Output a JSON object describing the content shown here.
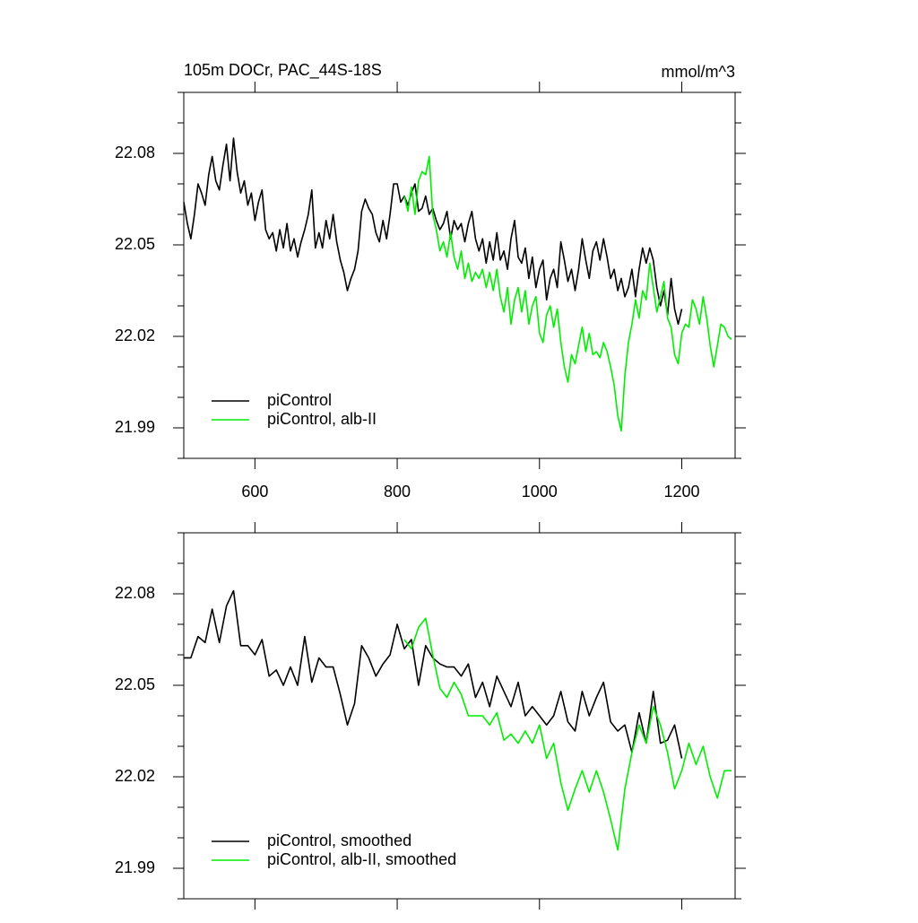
{
  "chart_data": [
    {
      "type": "line",
      "title": "105m DOCr, PAC_44S-18S",
      "units": "mmol/m^3",
      "xlim": [
        500,
        1275
      ],
      "ylim": [
        21.98,
        22.1
      ],
      "xticks": [
        600,
        800,
        1000,
        1200
      ],
      "xticklabels": true,
      "yticks": [
        22.08,
        22.05,
        22.02,
        21.99
      ],
      "yminorticks": [
        21.98,
        21.99,
        22.0,
        22.01,
        22.02,
        22.03,
        22.04,
        22.05,
        22.06,
        22.07,
        22.08,
        22.09,
        22.1
      ],
      "legend": "lower left",
      "series": [
        {
          "name": "piControl",
          "color": "#000000",
          "x": [
            500,
            505,
            510,
            515,
            520,
            525,
            530,
            535,
            540,
            545,
            550,
            555,
            560,
            565,
            570,
            575,
            580,
            585,
            590,
            595,
            600,
            605,
            610,
            615,
            620,
            625,
            630,
            635,
            640,
            645,
            650,
            655,
            660,
            665,
            670,
            675,
            680,
            685,
            690,
            695,
            700,
            705,
            710,
            715,
            720,
            725,
            730,
            735,
            740,
            745,
            750,
            755,
            760,
            765,
            770,
            775,
            780,
            785,
            790,
            795,
            800,
            805,
            810,
            815,
            820,
            825,
            830,
            835,
            840,
            845,
            850,
            855,
            860,
            865,
            870,
            875,
            880,
            885,
            890,
            895,
            900,
            905,
            910,
            915,
            920,
            925,
            930,
            935,
            940,
            945,
            950,
            955,
            960,
            965,
            970,
            975,
            980,
            985,
            990,
            995,
            1000,
            1005,
            1010,
            1015,
            1020,
            1025,
            1030,
            1035,
            1040,
            1045,
            1050,
            1055,
            1060,
            1065,
            1070,
            1075,
            1080,
            1085,
            1090,
            1095,
            1100,
            1105,
            1110,
            1115,
            1120,
            1125,
            1130,
            1135,
            1140,
            1145,
            1150,
            1155,
            1160,
            1165,
            1170,
            1175,
            1180,
            1185,
            1190,
            1195,
            1200
          ],
          "values": [
            22.064,
            22.057,
            22.052,
            22.06,
            22.07,
            22.067,
            22.063,
            22.073,
            22.079,
            22.071,
            22.068,
            22.076,
            22.083,
            22.071,
            22.085,
            22.074,
            22.067,
            22.071,
            22.063,
            22.067,
            22.058,
            22.064,
            22.068,
            22.055,
            22.052,
            22.054,
            22.048,
            22.055,
            22.049,
            22.057,
            22.048,
            22.052,
            22.046,
            22.051,
            22.055,
            22.06,
            22.068,
            22.049,
            22.054,
            22.049,
            22.058,
            22.052,
            22.06,
            22.051,
            22.045,
            22.041,
            22.035,
            22.039,
            22.042,
            22.048,
            22.061,
            22.065,
            22.062,
            22.06,
            22.054,
            22.051,
            22.058,
            22.052,
            22.06,
            22.07,
            22.07,
            22.064,
            22.066,
            22.063,
            22.067,
            22.07,
            22.061,
            22.062,
            22.066,
            22.06,
            22.062,
            22.058,
            22.055,
            22.057,
            22.061,
            22.052,
            22.058,
            22.055,
            22.057,
            22.051,
            22.057,
            22.061,
            22.052,
            22.048,
            22.052,
            22.044,
            22.051,
            22.045,
            22.054,
            22.045,
            22.048,
            22.042,
            22.052,
            22.058,
            22.046,
            22.044,
            22.049,
            22.039,
            22.046,
            22.036,
            22.042,
            22.045,
            22.032,
            22.039,
            22.042,
            22.036,
            22.051,
            22.045,
            22.038,
            22.042,
            22.035,
            22.042,
            22.052,
            22.045,
            22.039,
            22.048,
            22.051,
            22.045,
            22.052,
            22.046,
            22.039,
            22.042,
            22.035,
            22.039,
            22.033,
            22.036,
            22.042,
            22.033,
            22.042,
            22.049,
            22.044,
            22.049,
            22.045,
            22.036,
            22.03,
            22.035,
            22.027,
            22.039,
            22.029,
            22.024,
            22.029
          ]
        },
        {
          "name": "piControl, alb-II",
          "color": "#00ee00",
          "x": [
            810,
            815,
            820,
            825,
            830,
            835,
            840,
            845,
            850,
            855,
            860,
            865,
            870,
            875,
            880,
            885,
            890,
            895,
            900,
            905,
            910,
            915,
            920,
            925,
            930,
            935,
            940,
            945,
            950,
            955,
            960,
            965,
            970,
            975,
            980,
            985,
            990,
            995,
            1000,
            1005,
            1010,
            1015,
            1020,
            1025,
            1030,
            1035,
            1040,
            1045,
            1050,
            1055,
            1060,
            1065,
            1070,
            1075,
            1080,
            1085,
            1090,
            1095,
            1100,
            1105,
            1110,
            1115,
            1120,
            1125,
            1130,
            1135,
            1140,
            1145,
            1150,
            1155,
            1160,
            1165,
            1170,
            1175,
            1180,
            1185,
            1190,
            1195,
            1200,
            1205,
            1210,
            1215,
            1220,
            1225,
            1230,
            1235,
            1240,
            1245,
            1250,
            1255,
            1260,
            1265,
            1270
          ],
          "values": [
            22.066,
            22.061,
            22.069,
            22.06,
            22.071,
            22.074,
            22.073,
            22.079,
            22.06,
            22.055,
            22.048,
            22.051,
            22.046,
            22.054,
            22.046,
            22.042,
            22.048,
            22.039,
            22.044,
            22.038,
            22.041,
            22.039,
            22.042,
            22.036,
            22.041,
            22.035,
            22.042,
            22.033,
            22.028,
            22.036,
            22.024,
            22.032,
            22.036,
            22.028,
            22.035,
            22.024,
            22.03,
            22.033,
            22.021,
            22.018,
            22.027,
            22.03,
            22.023,
            22.029,
            22.018,
            22.01,
            22.005,
            22.014,
            22.011,
            22.017,
            22.023,
            22.015,
            22.021,
            22.014,
            22.015,
            22.013,
            22.018,
            22.015,
            22.01,
            22.004,
            21.994,
            21.989,
            22.007,
            22.018,
            22.024,
            22.032,
            22.026,
            22.035,
            22.032,
            22.044,
            22.036,
            22.028,
            22.033,
            22.038,
            22.026,
            22.023,
            22.014,
            22.011,
            22.021,
            22.024,
            22.023,
            22.032,
            22.029,
            22.024,
            22.033,
            22.026,
            22.017,
            22.01,
            22.017,
            22.024,
            22.023,
            22.02,
            22.019
          ]
        }
      ]
    },
    {
      "type": "line",
      "xlim": [
        500,
        1275
      ],
      "ylim": [
        21.98,
        22.1
      ],
      "xticks": [
        600,
        800,
        1000,
        1200
      ],
      "xticklabels": false,
      "yticks": [
        22.08,
        22.05,
        22.02,
        21.99
      ],
      "yminorticks": [
        21.98,
        21.99,
        22.0,
        22.01,
        22.02,
        22.03,
        22.04,
        22.05,
        22.06,
        22.07,
        22.08,
        22.09,
        22.1
      ],
      "legend": "lower left",
      "series": [
        {
          "name": "piControl, smoothed",
          "color": "#000000",
          "x": [
            500,
            510,
            520,
            530,
            540,
            550,
            560,
            570,
            580,
            590,
            600,
            610,
            620,
            630,
            640,
            650,
            660,
            670,
            680,
            690,
            700,
            710,
            720,
            730,
            740,
            750,
            760,
            770,
            780,
            790,
            800,
            810,
            820,
            830,
            840,
            850,
            860,
            870,
            880,
            890,
            900,
            910,
            920,
            930,
            940,
            950,
            960,
            970,
            980,
            990,
            1000,
            1010,
            1020,
            1030,
            1040,
            1050,
            1060,
            1070,
            1080,
            1090,
            1100,
            1110,
            1120,
            1130,
            1140,
            1150,
            1160,
            1170,
            1180,
            1190,
            1200
          ],
          "values": [
            22.059,
            22.059,
            22.066,
            22.064,
            22.075,
            22.064,
            22.076,
            22.081,
            22.063,
            22.063,
            22.06,
            22.065,
            22.053,
            22.055,
            22.05,
            22.056,
            22.05,
            22.066,
            22.051,
            22.059,
            22.056,
            22.056,
            22.047,
            22.037,
            22.044,
            22.063,
            22.059,
            22.053,
            22.057,
            22.06,
            22.07,
            22.062,
            22.065,
            22.05,
            22.063,
            22.059,
            22.057,
            22.056,
            22.056,
            22.053,
            22.057,
            22.046,
            22.051,
            22.043,
            22.053,
            22.048,
            22.043,
            22.051,
            22.04,
            22.043,
            22.04,
            22.037,
            22.04,
            22.048,
            22.038,
            22.035,
            22.048,
            22.04,
            22.046,
            22.051,
            22.038,
            22.035,
            22.037,
            22.028,
            22.041,
            22.031,
            22.048,
            22.031,
            22.032,
            22.037,
            22.026
          ]
        },
        {
          "name": "piControl, alb-II, smoothed",
          "color": "#00ee00",
          "x": [
            810,
            820,
            830,
            840,
            850,
            860,
            870,
            880,
            890,
            900,
            910,
            920,
            930,
            940,
            950,
            960,
            970,
            980,
            990,
            1000,
            1010,
            1020,
            1030,
            1040,
            1050,
            1060,
            1070,
            1080,
            1090,
            1100,
            1110,
            1120,
            1130,
            1140,
            1150,
            1160,
            1170,
            1180,
            1190,
            1200,
            1210,
            1220,
            1230,
            1240,
            1250,
            1260,
            1270
          ],
          "values": [
            22.065,
            22.062,
            22.069,
            22.072,
            22.06,
            22.049,
            22.046,
            22.051,
            22.047,
            22.04,
            22.04,
            22.04,
            22.037,
            22.041,
            22.032,
            22.034,
            22.031,
            22.035,
            22.031,
            22.037,
            22.026,
            22.031,
            22.018,
            22.009,
            22.016,
            22.022,
            22.015,
            22.022,
            22.015,
            22.006,
            21.996,
            22.016,
            22.028,
            22.037,
            22.031,
            22.043,
            22.037,
            22.028,
            22.016,
            22.022,
            22.031,
            22.024,
            22.03,
            22.02,
            22.013,
            22.022,
            22.022
          ]
        }
      ]
    }
  ]
}
